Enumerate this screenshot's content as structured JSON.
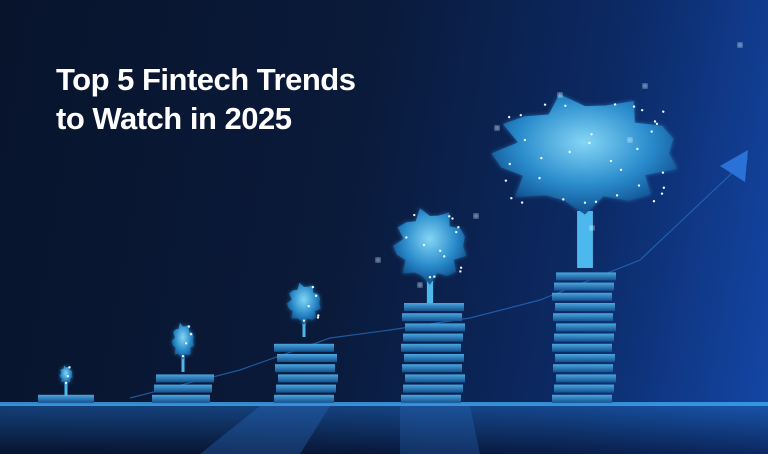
{
  "hero": {
    "title_line1": "Top 5 Fintech Trends",
    "title_line2": "to Watch in 2025",
    "illustration": "growing-trees-on-coin-stacks",
    "colors": {
      "background": "#0a1a3a",
      "accent": "#3fb4f0",
      "glow": "#7fd8ff",
      "text": "#ffffff"
    }
  }
}
